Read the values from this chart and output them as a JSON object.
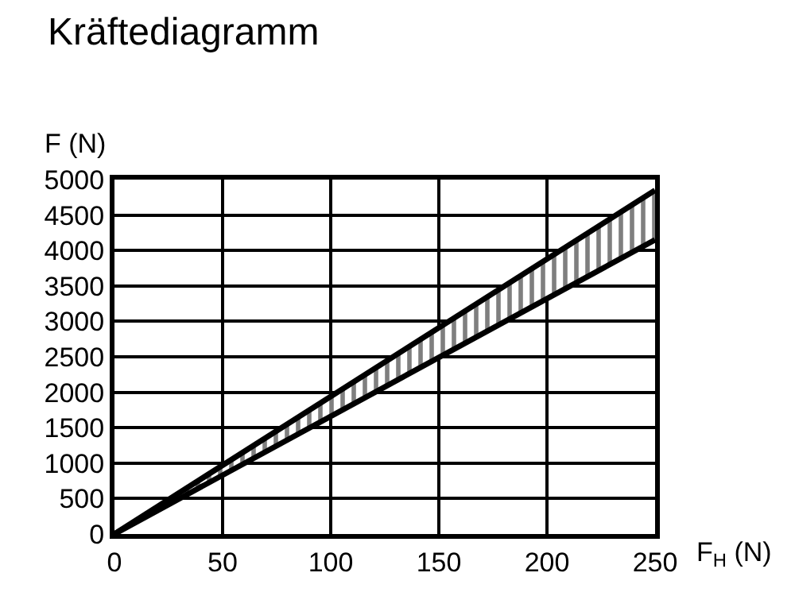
{
  "chart_data": {
    "type": "line",
    "title": "Kräftediagramm",
    "xlabel": "F$_{H}$ (N)",
    "ylabel": "F (N)",
    "x": [
      0,
      250
    ],
    "series": [
      {
        "color": "#000000",
        "values": [
          0,
          4850
        ]
      },
      {
        "color": "#000000",
        "values": [
          0,
          4150
        ],
        "lower": [
          0,
          4150
        ],
        "upper": [
          0,
          4850
        ]
      }
    ],
    "xlim": [
      0,
      250
    ],
    "xticks": [
      0,
      50,
      100,
      150,
      200,
      250
    ],
    "ylim": [
      0,
      5000
    ],
    "yticks": [
      0,
      500,
      1000,
      1500,
      2000,
      2500,
      3000,
      3500,
      4000,
      4500,
      5000
    ],
    "grid": true,
    "marker": "none",
    "line_style": "solid"
  }
}
